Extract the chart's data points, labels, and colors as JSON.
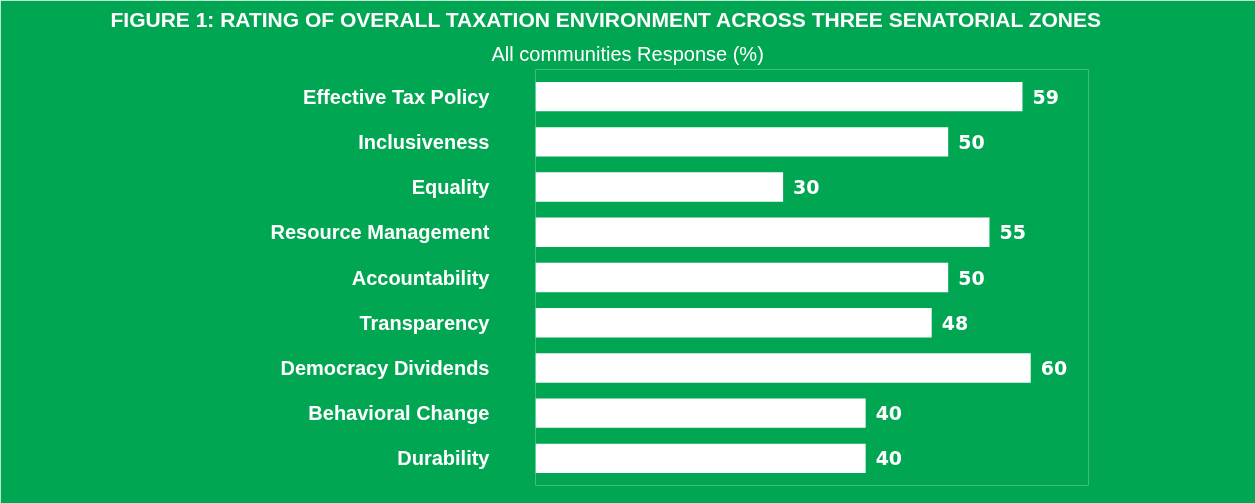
{
  "chart_data": {
    "type": "bar",
    "orientation": "horizontal",
    "title": "FIGURE 1: RATING OF OVERALL TAXATION ENVIRONMENT ACROSS THREE SENATORIAL ZONES",
    "subtitle": "All communities Response (%)",
    "categories": [
      "Effective Tax Policy",
      "Inclusiveness",
      "Equality",
      "Resource Management",
      "Accountability",
      "Transparency",
      "Democracy Dividends",
      "Behavioral Change",
      "Durability"
    ],
    "values": [
      59,
      50,
      30,
      55,
      50,
      48,
      60,
      40,
      40
    ],
    "color": "#ffffff",
    "data_labels": true,
    "grid": false
  }
}
